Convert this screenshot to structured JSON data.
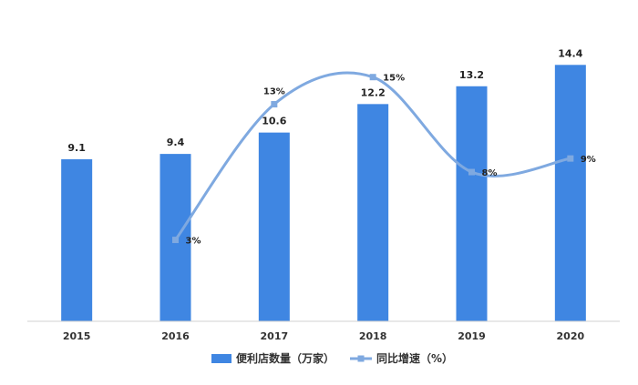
{
  "chart_data": {
    "type": "bar",
    "categories": [
      "2015",
      "2016",
      "2017",
      "2018",
      "2019",
      "2020"
    ],
    "series": [
      {
        "name": "便利店数量（万家）",
        "type": "bar",
        "axis": "left",
        "values": [
          9.1,
          9.4,
          10.6,
          12.2,
          13.2,
          14.4
        ],
        "labels": [
          "9.1",
          "9.4",
          "10.6",
          "12.2",
          "13.2",
          "14.4"
        ],
        "color": "#3F86E2"
      },
      {
        "name": "同比增速（%）",
        "type": "line",
        "smooth": true,
        "axis": "right",
        "values": [
          null,
          3,
          13,
          15,
          8,
          9
        ],
        "labels": [
          "",
          "3%",
          "13%",
          "15%",
          "8%",
          "9%"
        ],
        "color": "#7FA9E0"
      }
    ],
    "bar_axis_range": [
      0,
      16
    ],
    "line_axis_range": [
      -3,
      18
    ],
    "grid": false,
    "legend_position": "bottom"
  }
}
